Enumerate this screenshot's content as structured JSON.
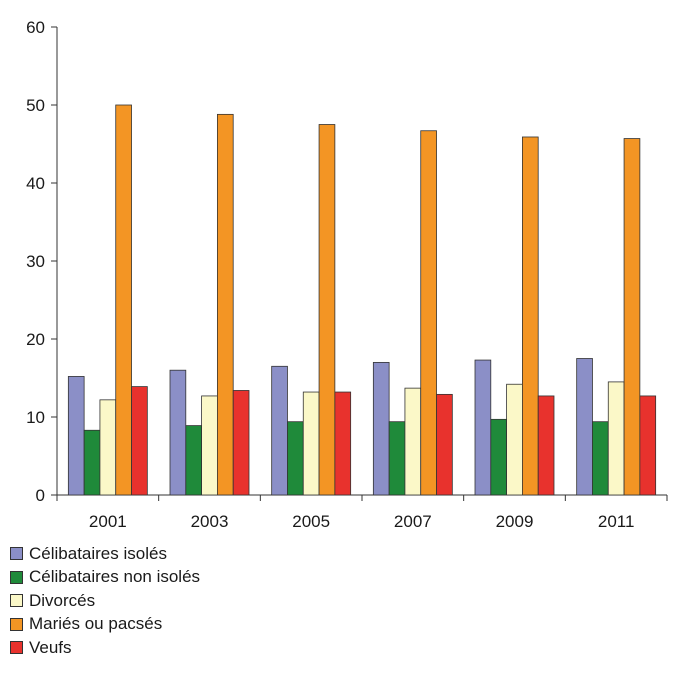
{
  "chart_data": {
    "type": "bar",
    "title": "",
    "xlabel": "",
    "ylabel": "",
    "categories": [
      "2001",
      "2003",
      "2005",
      "2007",
      "2009",
      "2011"
    ],
    "ylim": [
      0,
      60
    ],
    "yticks": [
      0,
      10,
      20,
      30,
      40,
      50,
      60
    ],
    "grid": false,
    "legend_position": "bottom-left",
    "series": [
      {
        "name": "Célibataires isolés",
        "color": "#8b8fc7",
        "values": [
          15.2,
          16.0,
          16.5,
          17.0,
          17.3,
          17.5
        ]
      },
      {
        "name": "Célibataires non isolés",
        "color": "#1f8a3a",
        "values": [
          8.3,
          8.9,
          9.4,
          9.4,
          9.7,
          9.4
        ]
      },
      {
        "name": "Divorcés",
        "color": "#fbf8c8",
        "values": [
          12.2,
          12.7,
          13.2,
          13.7,
          14.2,
          14.5
        ]
      },
      {
        "name": "Mariés ou pacsés",
        "color": "#f39524",
        "values": [
          50.0,
          48.8,
          47.5,
          46.7,
          45.9,
          45.7
        ]
      },
      {
        "name": "Veufs",
        "color": "#e8322d",
        "values": [
          13.9,
          13.4,
          13.2,
          12.9,
          12.7,
          12.7
        ]
      }
    ]
  }
}
